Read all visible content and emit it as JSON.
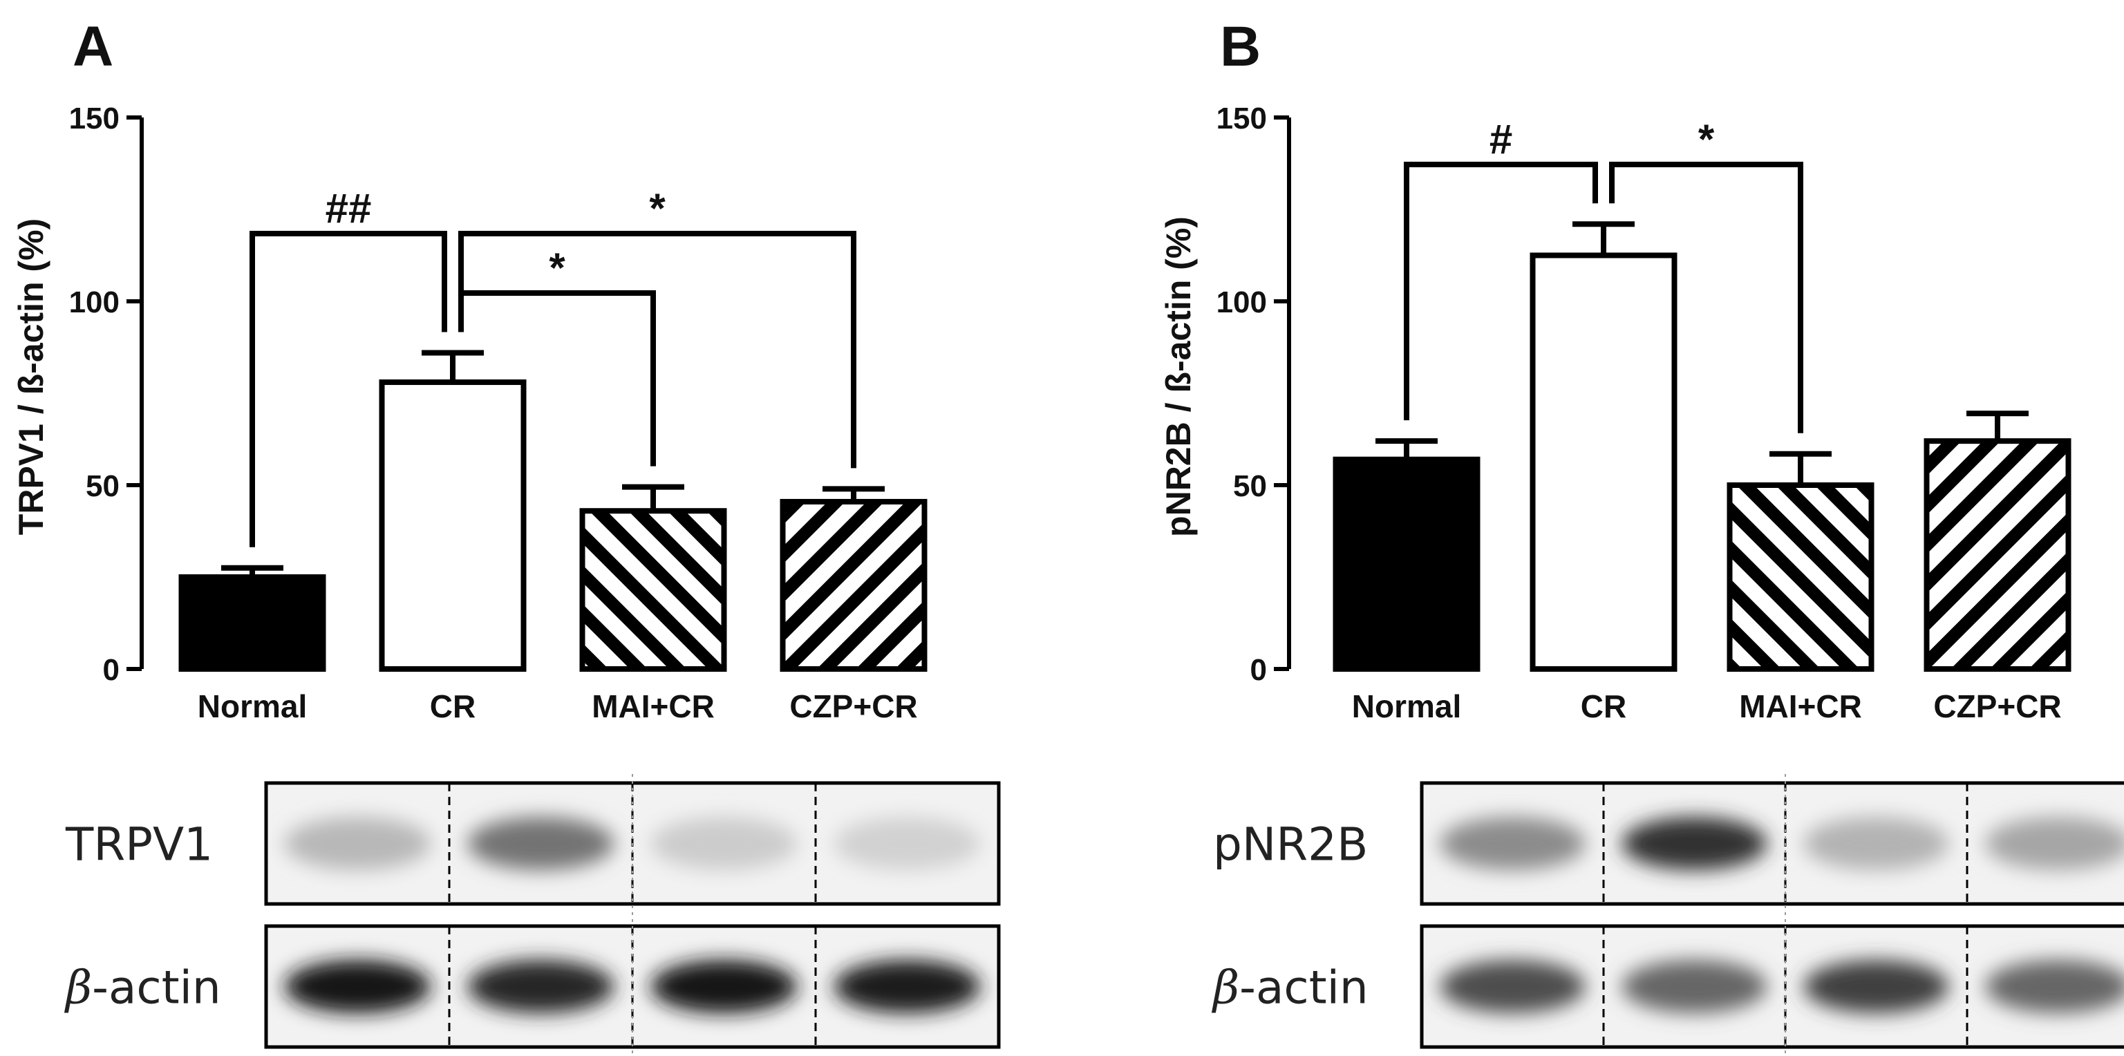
{
  "chart_data": [
    {
      "type": "bar",
      "panel_label": "A",
      "ylabel": "TRPV1 / ß-actin (%)",
      "ylim": [
        0,
        150
      ],
      "yticks": [
        0,
        50,
        100,
        150
      ],
      "categories": [
        "Normal",
        "CR",
        "MAI+CR",
        "CZP+CR"
      ],
      "values": [
        25,
        78,
        43,
        45.5
      ],
      "errors": [
        2.5,
        8,
        6.5,
        3.5
      ],
      "fills": [
        "solid-black",
        "white",
        "hatch-backslash",
        "hatch-slash"
      ],
      "significance": [
        {
          "from": "Normal",
          "to": "CR",
          "label": "##"
        },
        {
          "from": "CR",
          "to": "MAI+CR",
          "label": "*"
        },
        {
          "from": "CR",
          "to": "CZP+CR",
          "label": "*"
        }
      ],
      "blot": {
        "rows": [
          {
            "label": "TRPV1",
            "italic_prefix": "",
            "intensities": [
              0.28,
              0.55,
              0.2,
              0.18
            ]
          },
          {
            "label": "-actin",
            "italic_prefix": "β",
            "intensities": [
              0.92,
              0.85,
              0.9,
              0.88
            ]
          }
        ]
      }
    },
    {
      "type": "bar",
      "panel_label": "B",
      "ylabel": "pNR2B / ß-actin (%)",
      "ylim": [
        0,
        150
      ],
      "yticks": [
        0,
        50,
        100,
        150
      ],
      "categories": [
        "Normal",
        "CR",
        "MAI+CR",
        "CZP+CR"
      ],
      "values": [
        57,
        112.5,
        50,
        62
      ],
      "errors": [
        5,
        8.5,
        8.5,
        7.5
      ],
      "fills": [
        "solid-black",
        "white",
        "hatch-backslash",
        "hatch-slash"
      ],
      "significance": [
        {
          "from": "Normal",
          "to": "CR",
          "label": "#"
        },
        {
          "from": "CR",
          "to": "MAI+CR",
          "label": "*"
        }
      ],
      "blot": {
        "rows": [
          {
            "label": "pNR2B",
            "italic_prefix": "",
            "intensities": [
              0.45,
              0.8,
              0.3,
              0.35
            ]
          },
          {
            "label": "-actin",
            "italic_prefix": "β",
            "intensities": [
              0.7,
              0.6,
              0.75,
              0.6
            ]
          }
        ]
      }
    }
  ]
}
